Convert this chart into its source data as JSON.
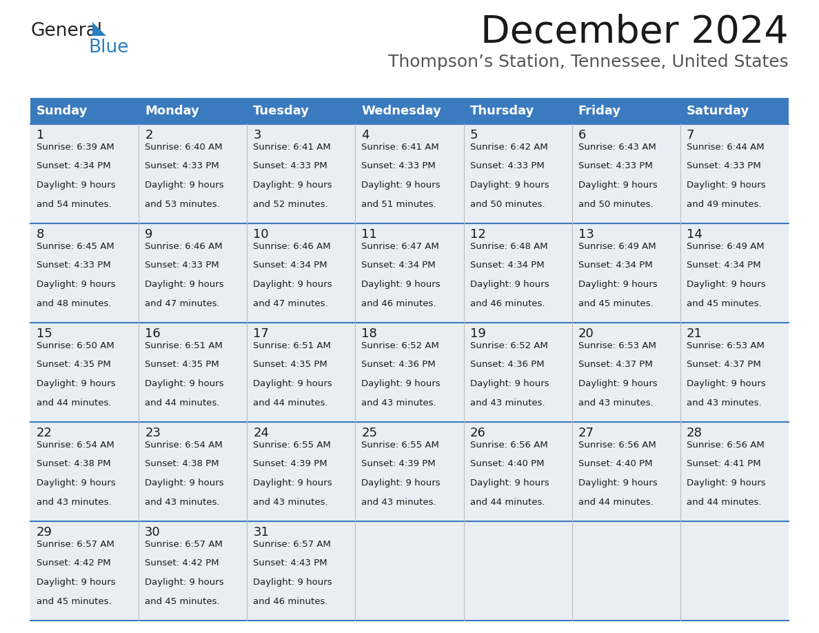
{
  "title": "December 2024",
  "subtitle": "Thompson’s Station, Tennessee, United States",
  "header_bg": "#3a7abf",
  "header_text_color": "#ffffff",
  "cell_bg": "#e8eef4",
  "border_color": "#3a7abf",
  "line_color": "#3a7abf",
  "day_names": [
    "Sunday",
    "Monday",
    "Tuesday",
    "Wednesday",
    "Thursday",
    "Friday",
    "Saturday"
  ],
  "days": [
    {
      "day": 1,
      "col": 0,
      "row": 0,
      "sunrise": "6:39 AM",
      "sunset": "4:34 PM",
      "daylight": "9 hours and 54 minutes."
    },
    {
      "day": 2,
      "col": 1,
      "row": 0,
      "sunrise": "6:40 AM",
      "sunset": "4:33 PM",
      "daylight": "9 hours and 53 minutes."
    },
    {
      "day": 3,
      "col": 2,
      "row": 0,
      "sunrise": "6:41 AM",
      "sunset": "4:33 PM",
      "daylight": "9 hours and 52 minutes."
    },
    {
      "day": 4,
      "col": 3,
      "row": 0,
      "sunrise": "6:41 AM",
      "sunset": "4:33 PM",
      "daylight": "9 hours and 51 minutes."
    },
    {
      "day": 5,
      "col": 4,
      "row": 0,
      "sunrise": "6:42 AM",
      "sunset": "4:33 PM",
      "daylight": "9 hours and 50 minutes."
    },
    {
      "day": 6,
      "col": 5,
      "row": 0,
      "sunrise": "6:43 AM",
      "sunset": "4:33 PM",
      "daylight": "9 hours and 50 minutes."
    },
    {
      "day": 7,
      "col": 6,
      "row": 0,
      "sunrise": "6:44 AM",
      "sunset": "4:33 PM",
      "daylight": "9 hours and 49 minutes."
    },
    {
      "day": 8,
      "col": 0,
      "row": 1,
      "sunrise": "6:45 AM",
      "sunset": "4:33 PM",
      "daylight": "9 hours and 48 minutes."
    },
    {
      "day": 9,
      "col": 1,
      "row": 1,
      "sunrise": "6:46 AM",
      "sunset": "4:33 PM",
      "daylight": "9 hours and 47 minutes."
    },
    {
      "day": 10,
      "col": 2,
      "row": 1,
      "sunrise": "6:46 AM",
      "sunset": "4:34 PM",
      "daylight": "9 hours and 47 minutes."
    },
    {
      "day": 11,
      "col": 3,
      "row": 1,
      "sunrise": "6:47 AM",
      "sunset": "4:34 PM",
      "daylight": "9 hours and 46 minutes."
    },
    {
      "day": 12,
      "col": 4,
      "row": 1,
      "sunrise": "6:48 AM",
      "sunset": "4:34 PM",
      "daylight": "9 hours and 46 minutes."
    },
    {
      "day": 13,
      "col": 5,
      "row": 1,
      "sunrise": "6:49 AM",
      "sunset": "4:34 PM",
      "daylight": "9 hours and 45 minutes."
    },
    {
      "day": 14,
      "col": 6,
      "row": 1,
      "sunrise": "6:49 AM",
      "sunset": "4:34 PM",
      "daylight": "9 hours and 45 minutes."
    },
    {
      "day": 15,
      "col": 0,
      "row": 2,
      "sunrise": "6:50 AM",
      "sunset": "4:35 PM",
      "daylight": "9 hours and 44 minutes."
    },
    {
      "day": 16,
      "col": 1,
      "row": 2,
      "sunrise": "6:51 AM",
      "sunset": "4:35 PM",
      "daylight": "9 hours and 44 minutes."
    },
    {
      "day": 17,
      "col": 2,
      "row": 2,
      "sunrise": "6:51 AM",
      "sunset": "4:35 PM",
      "daylight": "9 hours and 44 minutes."
    },
    {
      "day": 18,
      "col": 3,
      "row": 2,
      "sunrise": "6:52 AM",
      "sunset": "4:36 PM",
      "daylight": "9 hours and 43 minutes."
    },
    {
      "day": 19,
      "col": 4,
      "row": 2,
      "sunrise": "6:52 AM",
      "sunset": "4:36 PM",
      "daylight": "9 hours and 43 minutes."
    },
    {
      "day": 20,
      "col": 5,
      "row": 2,
      "sunrise": "6:53 AM",
      "sunset": "4:37 PM",
      "daylight": "9 hours and 43 minutes."
    },
    {
      "day": 21,
      "col": 6,
      "row": 2,
      "sunrise": "6:53 AM",
      "sunset": "4:37 PM",
      "daylight": "9 hours and 43 minutes."
    },
    {
      "day": 22,
      "col": 0,
      "row": 3,
      "sunrise": "6:54 AM",
      "sunset": "4:38 PM",
      "daylight": "9 hours and 43 minutes."
    },
    {
      "day": 23,
      "col": 1,
      "row": 3,
      "sunrise": "6:54 AM",
      "sunset": "4:38 PM",
      "daylight": "9 hours and 43 minutes."
    },
    {
      "day": 24,
      "col": 2,
      "row": 3,
      "sunrise": "6:55 AM",
      "sunset": "4:39 PM",
      "daylight": "9 hours and 43 minutes."
    },
    {
      "day": 25,
      "col": 3,
      "row": 3,
      "sunrise": "6:55 AM",
      "sunset": "4:39 PM",
      "daylight": "9 hours and 43 minutes."
    },
    {
      "day": 26,
      "col": 4,
      "row": 3,
      "sunrise": "6:56 AM",
      "sunset": "4:40 PM",
      "daylight": "9 hours and 44 minutes."
    },
    {
      "day": 27,
      "col": 5,
      "row": 3,
      "sunrise": "6:56 AM",
      "sunset": "4:40 PM",
      "daylight": "9 hours and 44 minutes."
    },
    {
      "day": 28,
      "col": 6,
      "row": 3,
      "sunrise": "6:56 AM",
      "sunset": "4:41 PM",
      "daylight": "9 hours and 44 minutes."
    },
    {
      "day": 29,
      "col": 0,
      "row": 4,
      "sunrise": "6:57 AM",
      "sunset": "4:42 PM",
      "daylight": "9 hours and 45 minutes."
    },
    {
      "day": 30,
      "col": 1,
      "row": 4,
      "sunrise": "6:57 AM",
      "sunset": "4:42 PM",
      "daylight": "9 hours and 45 minutes."
    },
    {
      "day": 31,
      "col": 2,
      "row": 4,
      "sunrise": "6:57 AM",
      "sunset": "4:43 PM",
      "daylight": "9 hours and 46 minutes."
    }
  ],
  "logo_text1": "General",
  "logo_text2": "Blue",
  "logo_color1": "#222222",
  "logo_color2": "#2a7fc1",
  "logo_triangle_color": "#2a7fc1",
  "title_fontsize": 40,
  "subtitle_fontsize": 18,
  "header_fontsize": 13,
  "daynum_fontsize": 13,
  "cell_fontsize": 9.5
}
